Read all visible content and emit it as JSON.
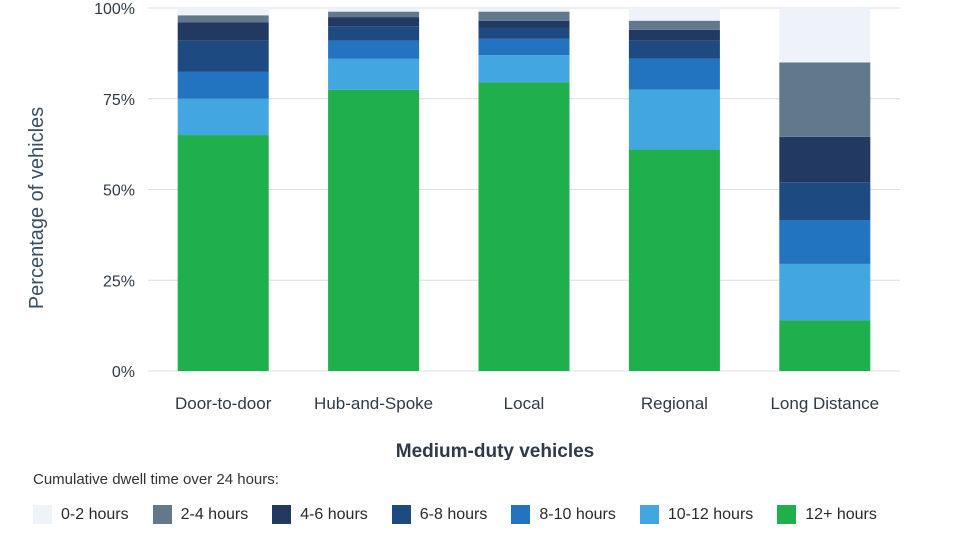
{
  "chart_data": {
    "type": "bar",
    "stacked": true,
    "categories": [
      "Door-to-door",
      "Hub-and-Spoke",
      "Local",
      "Regional",
      "Long Distance"
    ],
    "series": [
      {
        "name": "12+ hours",
        "color": "#1faf4c",
        "values": [
          65,
          77.5,
          79.5,
          61,
          14
        ]
      },
      {
        "name": "10-12 hours",
        "color": "#42a6e0",
        "values": [
          10,
          8.5,
          7.5,
          16.5,
          15.5
        ]
      },
      {
        "name": "8-10 hours",
        "color": "#2273c0",
        "values": [
          7.5,
          5,
          4.5,
          8.5,
          12
        ]
      },
      {
        "name": "6-8 hours",
        "color": "#1d4a80",
        "values": [
          8.5,
          4,
          3,
          5,
          10.5
        ]
      },
      {
        "name": "4-6 hours",
        "color": "#223962",
        "values": [
          5,
          2.5,
          2,
          3,
          12.5
        ]
      },
      {
        "name": "2-4 hours",
        "color": "#62798c",
        "values": [
          2,
          1.5,
          2.5,
          2.5,
          20.5
        ]
      },
      {
        "name": "0-2 hours",
        "color": "#eef3f9",
        "values": [
          2,
          1,
          1,
          3.5,
          15
        ]
      }
    ],
    "yticks": [
      "0%",
      "25%",
      "50%",
      "75%",
      "100%"
    ],
    "ylim": [
      0,
      100
    ],
    "ylabel": "Percentage of vehicles",
    "xlabel": "Medium-duty vehicles",
    "grid": true,
    "legend_position": "bottom",
    "legend_title": "Cumulative dwell time over 24 hours:",
    "legend_order": [
      "0-2 hours",
      "2-4 hours",
      "4-6 hours",
      "6-8 hours",
      "8-10 hours",
      "10-12 hours",
      "12+ hours"
    ]
  }
}
